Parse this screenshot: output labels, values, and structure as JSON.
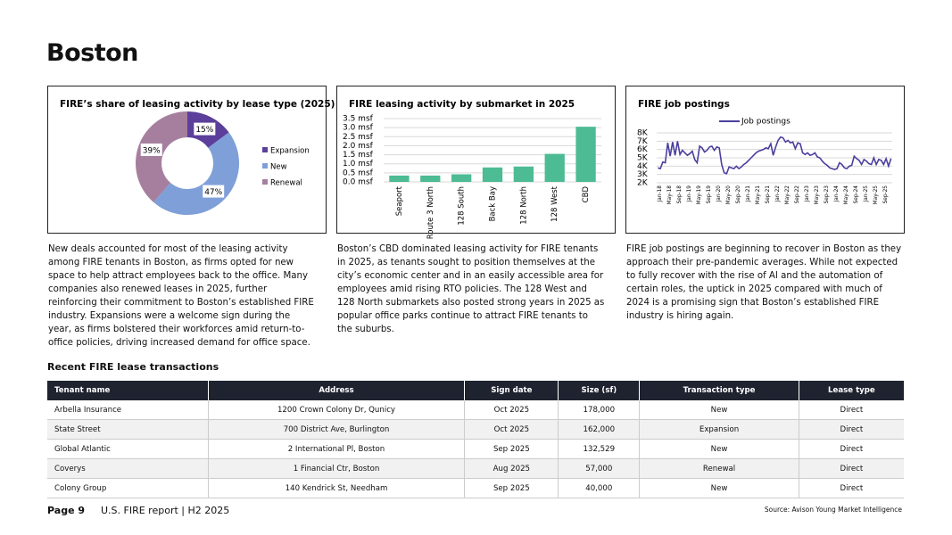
{
  "title": "Boston",
  "chart_data": [
    {
      "type": "pie",
      "title": "FIRE’s share of leasing activity by lease type (2025)",
      "categories": [
        "Expansion",
        "New",
        "Renewal"
      ],
      "values": [
        15,
        47,
        39
      ],
      "value_labels": [
        "15%",
        "47%",
        "39%"
      ],
      "colors": [
        "#5b3f9a",
        "#7f9fd8",
        "#a67f9e"
      ],
      "legend": "right"
    },
    {
      "type": "bar",
      "title": "FIRE leasing activity by submarket in 2025",
      "categories": [
        "Seaport",
        "Route 3 North",
        "128 South",
        "Back Bay",
        "128 North",
        "128 West",
        "CBD"
      ],
      "values": [
        0.35,
        0.35,
        0.42,
        0.8,
        0.85,
        1.55,
        3.05
      ],
      "color": "#4dbb94",
      "ylim": [
        0,
        3.5
      ],
      "yticks": [
        {
          "value": 0,
          "label": "0.0 msf"
        },
        {
          "value": 0.5,
          "label": "0.5 msf"
        },
        {
          "value": 1,
          "label": "1.0 msf"
        },
        {
          "value": 1.5,
          "label": "1.5 msf"
        },
        {
          "value": 2,
          "label": "2.0 msf"
        },
        {
          "value": 2.5,
          "label": "2.5 msf"
        },
        {
          "value": 3,
          "label": "3.0 msf"
        },
        {
          "value": 3.5,
          "label": "3.5 msf"
        }
      ],
      "grid": true
    },
    {
      "type": "line",
      "title": "FIRE job postings",
      "categories": [
        "Jan-18",
        null,
        null,
        null,
        "May-18",
        null,
        null,
        null,
        "Sep-18",
        null,
        null,
        null,
        "Jan-19",
        null,
        null,
        null,
        "May-19",
        null,
        null,
        null,
        "Sep-19",
        null,
        null,
        null,
        "Jan-20",
        null,
        null,
        null,
        "May-20",
        null,
        null,
        null,
        "Sep-20",
        null,
        null,
        null,
        "Jan-21",
        null,
        null,
        null,
        "May-21",
        null,
        null,
        null,
        "Sep-21",
        null,
        null,
        null,
        "Jan-22",
        null,
        null,
        null,
        "May-22",
        null,
        null,
        null,
        "Sep-22",
        null,
        null,
        null,
        "Jan-23",
        null,
        null,
        null,
        "May-23",
        null,
        null,
        null,
        "Sep-23",
        null,
        null,
        null,
        "Jan-24",
        null,
        null,
        null,
        "May-24",
        null,
        null,
        null,
        "Sep-24",
        null,
        null,
        null,
        "Jan-25",
        null,
        null,
        null,
        "May-25",
        null,
        null,
        null,
        "Sep-25",
        null,
        null,
        null
      ],
      "series": [
        {
          "name": "Job postings",
          "color": "#4b3f9e",
          "values": [
            3800,
            3700,
            4500,
            4400,
            6800,
            5200,
            6900,
            5300,
            7000,
            5400,
            5900,
            5600,
            5300,
            5500,
            5800,
            4800,
            4400,
            6400,
            6200,
            5700,
            5900,
            6300,
            6400,
            5900,
            6300,
            6200,
            4200,
            3200,
            3100,
            3900,
            3800,
            3700,
            4000,
            3700,
            3900,
            4200,
            4400,
            4700,
            5000,
            5300,
            5600,
            5800,
            5900,
            6000,
            6200,
            6100,
            6700,
            5300,
            6300,
            7100,
            7500,
            7400,
            6900,
            7100,
            6800,
            6900,
            6100,
            6800,
            6700,
            5600,
            5400,
            5600,
            5300,
            5400,
            5600,
            5100,
            5000,
            4600,
            4300,
            4100,
            3800,
            3700,
            3600,
            3700,
            4400,
            4200,
            3800,
            3700,
            4000,
            4100,
            5200,
            4900,
            4700,
            4200,
            4800,
            4600,
            4300,
            4200,
            5000,
            4200,
            4800,
            4700,
            4200,
            4900,
            4000,
            4900
          ]
        }
      ],
      "ylim": [
        2000,
        8000
      ],
      "yticks": [
        {
          "value": 2000,
          "label": "2K"
        },
        {
          "value": 3000,
          "label": "3K"
        },
        {
          "value": 4000,
          "label": "4K"
        },
        {
          "value": 5000,
          "label": "5K"
        },
        {
          "value": 6000,
          "label": "6K"
        },
        {
          "value": 7000,
          "label": "7K"
        },
        {
          "value": 8000,
          "label": "8K"
        }
      ],
      "grid": true,
      "legend": "top"
    }
  ],
  "paragraphs": [
    "New deals accounted for most of the leasing activity among FIRE tenants in Boston, as firms opted for new space to help attract employees back to the office. Many companies also renewed leases in 2025, further reinforcing their commitment to Boston’s established FIRE industry. Expansions were a welcome sign during the year, as firms bolstered their workforces amid return-to-office policies, driving increased demand for office space.",
    "Boston’s CBD dominated leasing activity for FIRE tenants in 2025, as tenants sought to position themselves at the city’s economic center and in an easily accessible area for employees amid rising RTO policies. The 128 West and 128 North submarkets also posted strong years in 2025 as popular office parks continue to attract FIRE tenants to the suburbs.",
    "FIRE job postings are beginning to recover in Boston as they approach their pre-pandemic averages. While not expected to fully recover with the rise of AI and the automation of certain roles, the uptick in 2025 compared with much of 2024 is a promising sign that Boston’s established FIRE industry is hiring again."
  ],
  "table": {
    "title": "Recent FIRE lease transactions",
    "columns": [
      "Tenant name",
      "Address",
      "Sign date",
      "Size (sf)",
      "Transaction type",
      "Lease type"
    ],
    "rows": [
      [
        "Arbella Insurance",
        "1200 Crown Colony Dr, Qunicy",
        "Oct 2025",
        "178,000",
        "New",
        "Direct"
      ],
      [
        "State Street",
        "700 District Ave, Burlington",
        "Oct 2025",
        "162,000",
        "Expansion",
        "Direct"
      ],
      [
        "Global Atlantic",
        "2 International Pl, Boston",
        "Sep 2025",
        "132,529",
        "New",
        "Direct"
      ],
      [
        "Coverys",
        "1 Financial Ctr, Boston",
        "Aug 2025",
        "57,000",
        "Renewal",
        "Direct"
      ],
      [
        "Colony Group",
        "140 Kendrick St, Needham",
        "Sep 2025",
        "40,000",
        "New",
        "Direct"
      ]
    ]
  },
  "footer": {
    "page": "Page 9",
    "report": "U.S. FIRE report | H2 2025",
    "source": "Source: Avison Young Market Intelligence"
  }
}
